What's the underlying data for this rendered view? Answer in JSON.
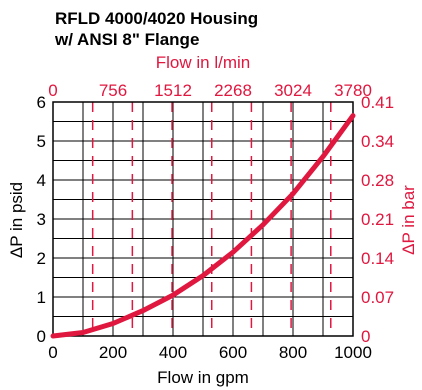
{
  "chart_data": {
    "type": "line",
    "title": [
      "RFLD 4000/4020 Housing",
      "w/ ANSI 8\" Flange"
    ],
    "xlabel": "Flow in gpm",
    "ylabel": "ΔP in psid",
    "top_xlabel": "Flow in l/min",
    "right_ylabel": "ΔP in bar",
    "xlim": [
      0,
      1000
    ],
    "ylim": [
      0,
      6
    ],
    "x_ticks": [
      "0",
      "200",
      "400",
      "600",
      "800",
      "1000"
    ],
    "y_ticks": [
      "0",
      "1",
      "2",
      "3",
      "4",
      "5",
      "6"
    ],
    "top_ticks": [
      {
        "label": "0",
        "gpm": 0
      },
      {
        "label": "756",
        "gpm": 200
      },
      {
        "label": "1512",
        "gpm": 400
      },
      {
        "label": "2268",
        "gpm": 600
      },
      {
        "label": "3024",
        "gpm": 800
      },
      {
        "label": "3780",
        "gpm": 1000
      }
    ],
    "right_ticks": [
      {
        "label": "0",
        "psid": 0
      },
      {
        "label": "0.07",
        "psid": 1
      },
      {
        "label": "0.14",
        "psid": 2
      },
      {
        "label": "0.21",
        "psid": 3
      },
      {
        "label": "0.28",
        "psid": 4
      },
      {
        "label": "0.34",
        "psid": 5
      },
      {
        "label": "0.41",
        "psid": 6
      }
    ],
    "grid": true,
    "series": [
      {
        "color": "#e0173f",
        "x": [
          0,
          100,
          200,
          300,
          400,
          500,
          600,
          700,
          800,
          900,
          1000
        ],
        "y": [
          0,
          0.09,
          0.32,
          0.65,
          1.05,
          1.55,
          2.15,
          2.85,
          3.65,
          4.6,
          5.65
        ]
      }
    ]
  },
  "colors": {
    "accent": "#e0173f",
    "axis": "#000000"
  }
}
